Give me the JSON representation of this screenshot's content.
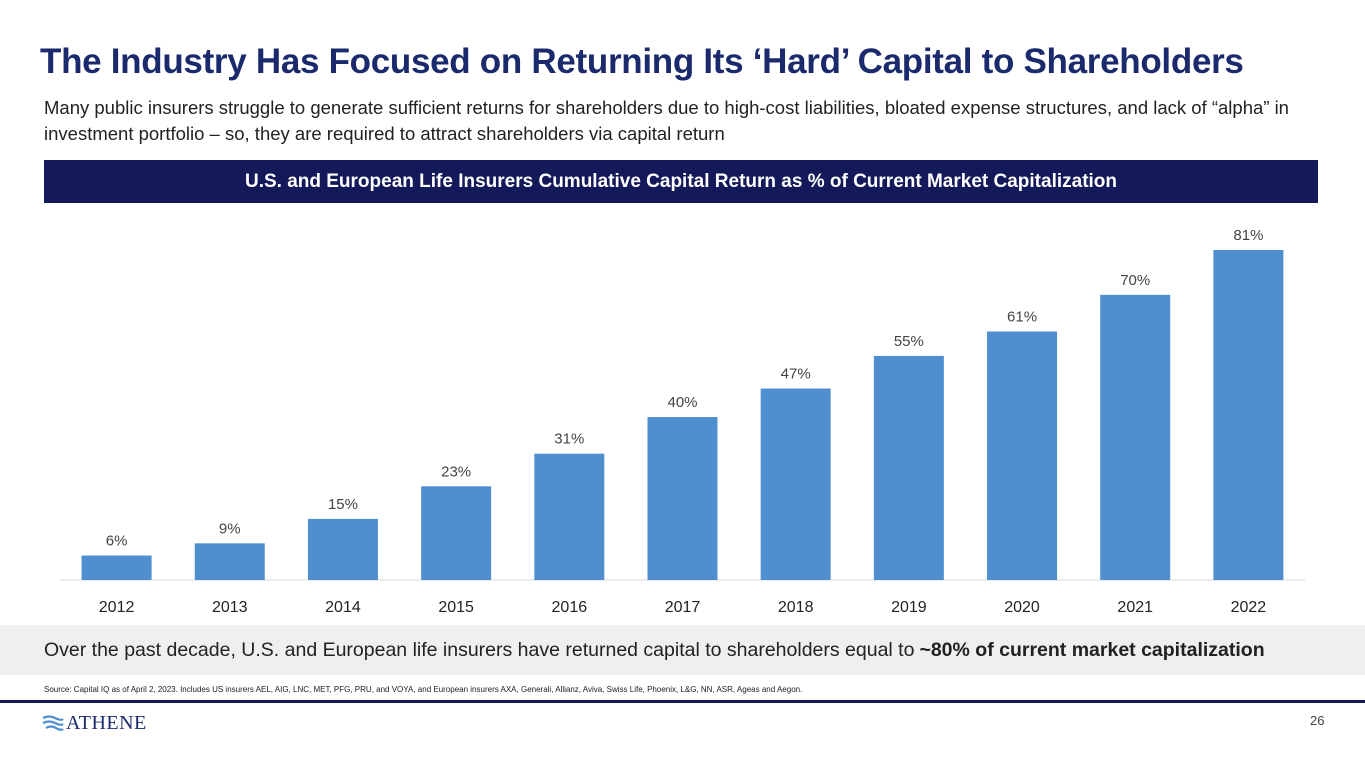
{
  "header": {
    "title": "The Industry Has Focused on Returning Its ‘Hard’ Capital to Shareholders",
    "subtitle": "Many public insurers struggle to generate sufficient returns for shareholders due to high-cost liabilities, bloated expense structures, and lack of “alpha” in investment portfolio – so, they are required to attract shareholders via capital return"
  },
  "chart_data": {
    "type": "bar",
    "title": "U.S. and European Life Insurers Cumulative Capital Return as % of Current Market Capitalization",
    "categories": [
      "2012",
      "2013",
      "2014",
      "2015",
      "2016",
      "2017",
      "2018",
      "2019",
      "2020",
      "2021",
      "2022"
    ],
    "values": [
      6,
      9,
      15,
      23,
      31,
      40,
      47,
      55,
      61,
      70,
      81
    ],
    "data_labels": [
      "6%",
      "9%",
      "15%",
      "23%",
      "31%",
      "40%",
      "47%",
      "55%",
      "61%",
      "70%",
      "81%"
    ],
    "xlabel": "",
    "ylabel": "",
    "ylim": [
      0,
      81
    ],
    "grid": false,
    "bar_color": "#4f8fcf"
  },
  "callout": {
    "text": "Over the past decade, U.S. and European life insurers have returned capital to shareholders equal to",
    "emphasis": "~80% of current market capitalization"
  },
  "footer": {
    "source": "Source: Capital IQ as of April 2, 2023. Includes US insurers AEL, AIG, LNC, MET, PFG, PRU, and VOYA, and European insurers AXA, Generali, Allianz, Aviva, Swiss Life, Phoenix, L&G, NN, ASR, Ageas and Aegon.",
    "logo_text": "ATHENE",
    "page_number": "26"
  },
  "colors": {
    "title": "#1a2a6c",
    "banner": "#14195a",
    "bar": "#4f8fcf",
    "callout_bg": "#efefef"
  }
}
